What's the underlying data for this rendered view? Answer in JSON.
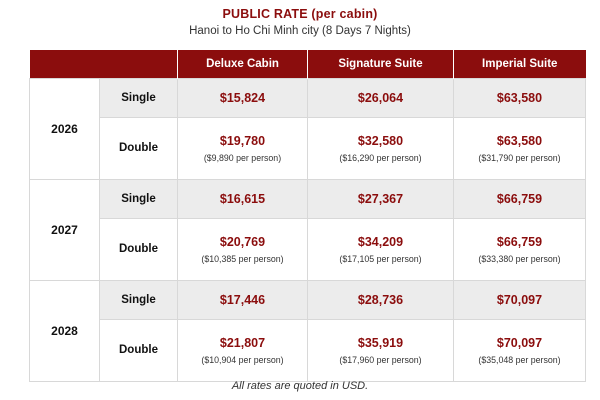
{
  "header": {
    "title": "PUBLIC RATE (per cabin)",
    "subtitle": "Hanoi to Ho Chi Minh city (8 Days 7 Nights)"
  },
  "table": {
    "columns": [
      "Deluxe Cabin",
      "Signature Suite",
      "Imperial Suite"
    ],
    "years": [
      {
        "year": "2026",
        "single": {
          "label": "Single",
          "prices": [
            "$15,824",
            "$26,064",
            "$63,580"
          ]
        },
        "double": {
          "label": "Double",
          "prices": [
            "$19,780",
            "$32,580",
            "$63,580"
          ],
          "per_person": [
            "($9,890 per person)",
            "($16,290 per person)",
            "($31,790 per person)"
          ]
        }
      },
      {
        "year": "2027",
        "single": {
          "label": "Single",
          "prices": [
            "$16,615",
            "$27,367",
            "$66,759"
          ]
        },
        "double": {
          "label": "Double",
          "prices": [
            "$20,769",
            "$34,209",
            "$66,759"
          ],
          "per_person": [
            "($10,385 per person)",
            "($17,105 per person)",
            "($33,380 per person)"
          ]
        }
      },
      {
        "year": "2028",
        "single": {
          "label": "Single",
          "prices": [
            "$17,446",
            "$28,736",
            "$70,097"
          ]
        },
        "double": {
          "label": "Double",
          "prices": [
            "$21,807",
            "$35,919",
            "$70,097"
          ],
          "per_person": [
            "($10,904 per person)",
            "($17,960 per person)",
            "($35,048 per person)"
          ]
        }
      }
    ]
  },
  "footnote": "All rates are quoted in USD.",
  "colors": {
    "accent": "#8b0d0d",
    "single_row_bg": "#ececec",
    "border": "#d8d8d8"
  }
}
